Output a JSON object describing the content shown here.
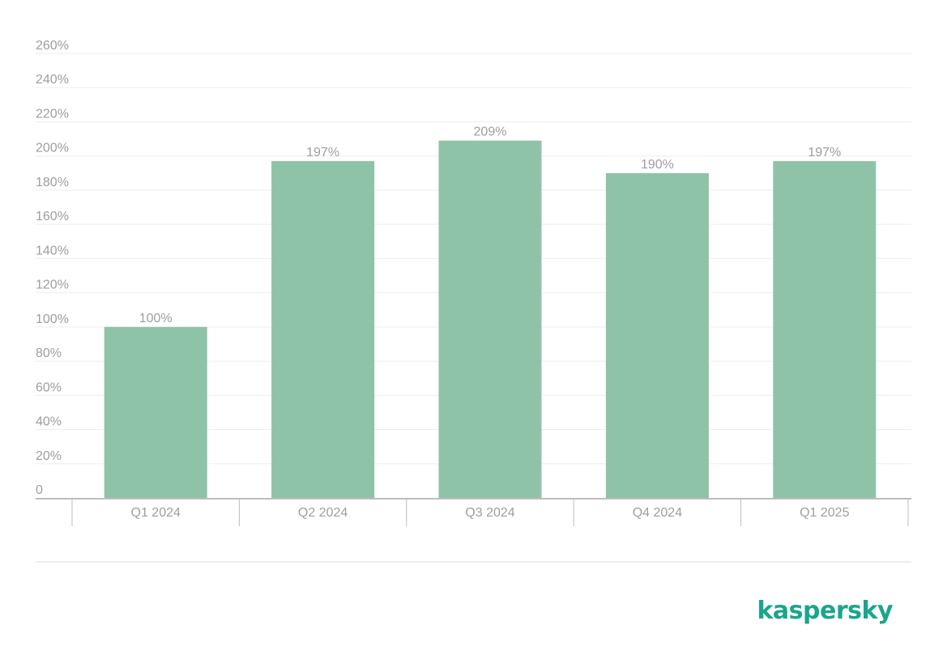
{
  "brand": {
    "name": "kaspersky",
    "color": "#1aa58c"
  },
  "colors": {
    "bar": "#8fc3a7",
    "grid": "#eeeeee",
    "axis": "#bdbdbd",
    "text": "#9e9e9e",
    "separator": "#dddddd"
  },
  "chart_data": {
    "type": "bar",
    "title": "",
    "xlabel": "",
    "ylabel": "",
    "categories": [
      "Q1 2024",
      "Q2 2024",
      "Q3 2024",
      "Q4 2024",
      "Q1 2025"
    ],
    "values": [
      100,
      197,
      209,
      190,
      197
    ],
    "data_labels": [
      "100%",
      "197%",
      "209%",
      "190%",
      "197%"
    ],
    "ylim": [
      0,
      260
    ],
    "yticks": [
      0,
      20,
      40,
      60,
      80,
      100,
      120,
      140,
      160,
      180,
      200,
      220,
      240,
      260
    ],
    "ytick_labels": [
      "0",
      "20%",
      "40%",
      "60%",
      "80%",
      "100%",
      "120%",
      "140%",
      "160%",
      "180%",
      "200%",
      "220%",
      "240%",
      "260%"
    ],
    "grid": true,
    "legend": "none"
  }
}
